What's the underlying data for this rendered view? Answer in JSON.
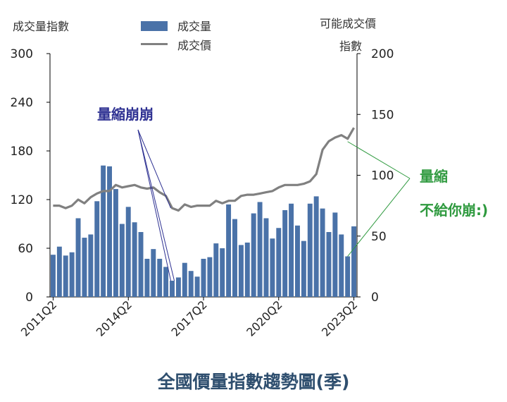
{
  "chart_data": {
    "type": "bar+line",
    "title": "全國價量指數趨勢圖(季)",
    "left_axis_label": "成交量指數",
    "right_axis_label_line1": "可能成交價",
    "right_axis_label_line2": "指數",
    "ylim_left": [
      0,
      300
    ],
    "ylim_right": [
      0,
      200
    ],
    "yticks_left": [
      "0",
      "60",
      "120",
      "180",
      "240",
      "300"
    ],
    "yticks_right": [
      "0",
      "50",
      "100",
      "150",
      "200"
    ],
    "xtick_labels": [
      "2011Q2",
      "2014Q2",
      "2017Q2",
      "2020Q2",
      "2023Q2"
    ],
    "legend": {
      "bar_label": "成交量",
      "line_label": "成交價"
    },
    "series": [
      {
        "name": "成交量",
        "type": "bar",
        "axis": "left",
        "color": "#4a72a8",
        "values": [
          52,
          62,
          51,
          55,
          97,
          73,
          77,
          118,
          162,
          161,
          133,
          90,
          111,
          92,
          80,
          47,
          59,
          47,
          37,
          20,
          24,
          42,
          32,
          25,
          47,
          49,
          66,
          60,
          114,
          96,
          64,
          67,
          103,
          117,
          97,
          72,
          85,
          107,
          115,
          88,
          69,
          115,
          124,
          109,
          80,
          104,
          77,
          50,
          87
        ]
      },
      {
        "name": "成交價",
        "type": "line",
        "axis": "right",
        "color": "#808080",
        "values": [
          75,
          75,
          73,
          75,
          80,
          77,
          82,
          85,
          87,
          87,
          92,
          90,
          91,
          92,
          90,
          89,
          90,
          86,
          83,
          73,
          71,
          76,
          74,
          75,
          75,
          75,
          79,
          77,
          79,
          79,
          83,
          84,
          84,
          85,
          86,
          87,
          90,
          92,
          92,
          92,
          93,
          95,
          101,
          121,
          128,
          131,
          133,
          130,
          139
        ]
      }
    ],
    "annotations": {
      "left": "量縮崩崩",
      "right_line1": "量縮",
      "right_line2": "不給你崩:)"
    }
  }
}
